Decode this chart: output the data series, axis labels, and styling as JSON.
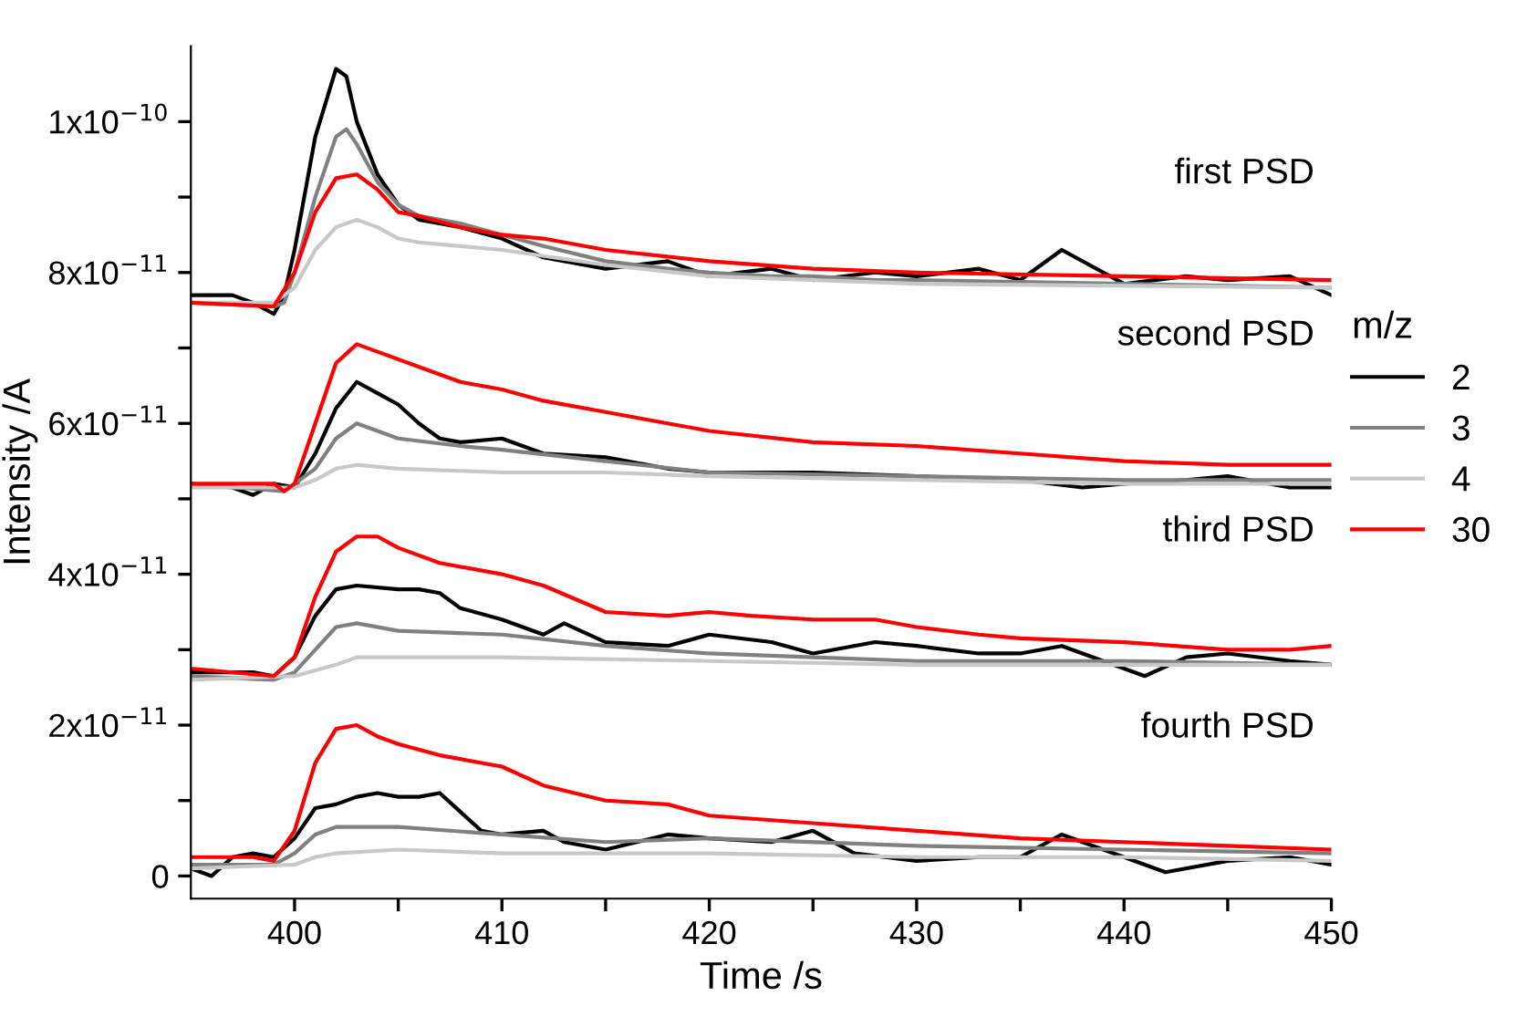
{
  "chart_data": {
    "type": "line",
    "xlabel": "Time /s",
    "ylabel": "Intensity /A",
    "legend_title": "m/z",
    "legend": "right",
    "grid": false,
    "line_style": "solid",
    "marker": "none",
    "xlim": [
      395,
      450
    ],
    "xticks": [
      400,
      {
        "value": 405,
        "label": null
      },
      410,
      {
        "value": 415,
        "label": null
      },
      420,
      {
        "value": 425,
        "label": null
      },
      430,
      {
        "value": 435,
        "label": null
      },
      440,
      {
        "value": 445,
        "label": null
      },
      450
    ],
    "ylim": [
      -3e-12,
      1.1e-10
    ],
    "yticks": [
      {
        "value": 0,
        "label": "0"
      },
      {
        "value": 1e-11,
        "label": null
      },
      {
        "value": 2e-11,
        "label": "2x10$^{−11}$"
      },
      {
        "value": 3e-11,
        "label": null
      },
      {
        "value": 4e-11,
        "label": "4x10$^{−11}$"
      },
      {
        "value": 5e-11,
        "label": null
      },
      {
        "value": 6e-11,
        "label": "6x10$^{−11}$"
      },
      {
        "value": 7e-11,
        "label": null
      },
      {
        "value": 8e-11,
        "label": "8x10$^{−11}$"
      },
      {
        "value": 9e-11,
        "label": null
      },
      {
        "value": 1e-10,
        "label": "1x10$^{−10}$"
      }
    ],
    "annotations": [
      "first PSD",
      "second PSD",
      "third PSD",
      "fourth PSD"
    ],
    "series": [
      {
        "name": "2",
        "color": "#000000",
        "x": [
          395,
          397,
          398,
          399,
          399.5,
          400,
          401,
          402,
          402.5,
          403,
          404,
          405,
          406,
          407,
          408,
          410,
          412,
          415,
          418,
          420,
          423,
          425,
          428,
          430,
          433,
          435,
          437,
          440,
          443,
          445,
          448,
          450
        ],
        "values": [
          7.7e-11,
          7.7e-11,
          7.6e-11,
          7.45e-11,
          7.7e-11,
          8.3e-11,
          9.8e-11,
          1.07e-10,
          1.06e-10,
          1e-10,
          9.3e-11,
          8.9e-11,
          8.7e-11,
          8.65e-11,
          8.6e-11,
          8.45e-11,
          8.2e-11,
          8.05e-11,
          8.15e-11,
          7.95e-11,
          8.05e-11,
          7.9e-11,
          8e-11,
          7.95e-11,
          8.05e-11,
          7.9e-11,
          8.3e-11,
          7.85e-11,
          7.95e-11,
          7.9e-11,
          7.95e-11,
          7.7e-11
        ]
      },
      {
        "name": "3",
        "color": "#808080",
        "x": [
          395,
          399,
          399.5,
          400,
          401,
          402,
          402.5,
          403,
          404,
          405,
          406,
          407,
          408,
          410,
          412,
          415,
          418,
          420,
          423,
          425,
          428,
          430,
          440,
          450
        ],
        "values": [
          7.6e-11,
          7.55e-11,
          7.6e-11,
          8e-11,
          9e-11,
          9.8e-11,
          9.9e-11,
          9.7e-11,
          9.2e-11,
          8.9e-11,
          8.75e-11,
          8.7e-11,
          8.65e-11,
          8.5e-11,
          8.35e-11,
          8.15e-11,
          8.05e-11,
          8e-11,
          7.95e-11,
          7.95e-11,
          7.9e-11,
          7.9e-11,
          7.85e-11,
          7.8e-11
        ]
      },
      {
        "name": "4",
        "color": "#c8c8c8",
        "x": [
          395,
          399,
          400,
          401,
          402,
          403,
          404,
          405,
          406,
          408,
          410,
          415,
          420,
          430,
          450
        ],
        "values": [
          7.6e-11,
          7.6e-11,
          7.8e-11,
          8.3e-11,
          8.6e-11,
          8.7e-11,
          8.6e-11,
          8.45e-11,
          8.4e-11,
          8.35e-11,
          8.3e-11,
          8.1e-11,
          7.95e-11,
          7.85e-11,
          7.8e-11
        ]
      },
      {
        "name": "30",
        "color": "#ff0000",
        "x": [
          395,
          399,
          400,
          401,
          402,
          403,
          404,
          405,
          406,
          408,
          410,
          412,
          415,
          420,
          425,
          430,
          440,
          450
        ],
        "values": [
          7.6e-11,
          7.55e-11,
          8e-11,
          8.8e-11,
          9.25e-11,
          9.3e-11,
          9.1e-11,
          8.8e-11,
          8.75e-11,
          8.6e-11,
          8.5e-11,
          8.45e-11,
          8.3e-11,
          8.15e-11,
          8.05e-11,
          8e-11,
          7.95e-11,
          7.9e-11
        ]
      },
      {
        "color": "#000000",
        "x": [
          395,
          397,
          398,
          399,
          400,
          401,
          402,
          403,
          404,
          405,
          406,
          407,
          408,
          410,
          412,
          415,
          418,
          420,
          425,
          430,
          435,
          438,
          440,
          443,
          445,
          448,
          450
        ],
        "values": [
          5.2e-11,
          5.15e-11,
          5.05e-11,
          5.2e-11,
          5.15e-11,
          5.6e-11,
          6.2e-11,
          6.55e-11,
          6.4e-11,
          6.25e-11,
          6e-11,
          5.8e-11,
          5.75e-11,
          5.8e-11,
          5.6e-11,
          5.55e-11,
          5.4e-11,
          5.35e-11,
          5.35e-11,
          5.3e-11,
          5.25e-11,
          5.15e-11,
          5.2e-11,
          5.25e-11,
          5.3e-11,
          5.15e-11,
          5.15e-11
        ]
      },
      {
        "color": "#808080",
        "x": [
          395,
          399.5,
          401,
          402,
          403,
          405,
          408,
          410,
          415,
          420,
          430,
          440,
          450
        ],
        "values": [
          5.2e-11,
          5.1e-11,
          5.4e-11,
          5.8e-11,
          6e-11,
          5.8e-11,
          5.7e-11,
          5.65e-11,
          5.5e-11,
          5.35e-11,
          5.3e-11,
          5.25e-11,
          5.25e-11
        ]
      },
      {
        "color": "#c8c8c8",
        "x": [
          395,
          400,
          401,
          402,
          403,
          405,
          410,
          415,
          420,
          430,
          440,
          450
        ],
        "values": [
          5.15e-11,
          5.15e-11,
          5.25e-11,
          5.4e-11,
          5.45e-11,
          5.4e-11,
          5.35e-11,
          5.35e-11,
          5.3e-11,
          5.25e-11,
          5.2e-11,
          5.2e-11
        ]
      },
      {
        "color": "#ff0000",
        "x": [
          395,
          399,
          399.5,
          400,
          401,
          402,
          403,
          404,
          406,
          408,
          410,
          412,
          415,
          418,
          420,
          425,
          430,
          435,
          440,
          445,
          450
        ],
        "values": [
          5.2e-11,
          5.2e-11,
          5.1e-11,
          5.2e-11,
          6e-11,
          6.8e-11,
          7.05e-11,
          6.95e-11,
          6.75e-11,
          6.55e-11,
          6.45e-11,
          6.3e-11,
          6.15e-11,
          6e-11,
          5.9e-11,
          5.75e-11,
          5.7e-11,
          5.6e-11,
          5.5e-11,
          5.45e-11,
          5.45e-11
        ]
      },
      {
        "color": "#000000",
        "x": [
          395,
          398,
          399,
          400,
          401,
          402,
          403,
          405,
          406,
          407,
          408,
          410,
          412,
          413,
          415,
          418,
          420,
          423,
          425,
          428,
          430,
          433,
          435,
          437,
          440,
          441,
          443,
          445,
          448,
          450
        ],
        "values": [
          2.7e-11,
          2.7e-11,
          2.65e-11,
          2.9e-11,
          3.45e-11,
          3.8e-11,
          3.85e-11,
          3.8e-11,
          3.8e-11,
          3.75e-11,
          3.55e-11,
          3.4e-11,
          3.2e-11,
          3.35e-11,
          3.1e-11,
          3.05e-11,
          3.2e-11,
          3.1e-11,
          2.95e-11,
          3.1e-11,
          3.05e-11,
          2.95e-11,
          2.95e-11,
          3.05e-11,
          2.75e-11,
          2.65e-11,
          2.9e-11,
          2.95e-11,
          2.85e-11,
          2.8e-11
        ]
      },
      {
        "color": "#808080",
        "x": [
          395,
          399,
          400,
          401,
          402,
          403,
          405,
          410,
          415,
          420,
          425,
          430,
          440,
          450
        ],
        "values": [
          2.65e-11,
          2.6e-11,
          2.7e-11,
          3e-11,
          3.3e-11,
          3.35e-11,
          3.25e-11,
          3.2e-11,
          3.05e-11,
          2.95e-11,
          2.9e-11,
          2.85e-11,
          2.85e-11,
          2.8e-11
        ]
      },
      {
        "color": "#c8c8c8",
        "x": [
          395,
          400,
          402,
          403,
          410,
          420,
          430,
          440,
          450
        ],
        "values": [
          2.6e-11,
          2.65e-11,
          2.8e-11,
          2.9e-11,
          2.9e-11,
          2.85e-11,
          2.8e-11,
          2.8e-11,
          2.8e-11
        ]
      },
      {
        "color": "#ff0000",
        "x": [
          395,
          399,
          400,
          401,
          402,
          403,
          404,
          405,
          407,
          410,
          412,
          415,
          418,
          420,
          422,
          425,
          428,
          430,
          433,
          435,
          440,
          445,
          448,
          450
        ],
        "values": [
          2.75e-11,
          2.65e-11,
          2.9e-11,
          3.7e-11,
          4.3e-11,
          4.5e-11,
          4.5e-11,
          4.35e-11,
          4.15e-11,
          4e-11,
          3.85e-11,
          3.5e-11,
          3.45e-11,
          3.5e-11,
          3.45e-11,
          3.4e-11,
          3.4e-11,
          3.3e-11,
          3.2e-11,
          3.15e-11,
          3.1e-11,
          3e-11,
          3e-11,
          3.05e-11
        ]
      },
      {
        "color": "#000000",
        "x": [
          395,
          396,
          397,
          398,
          399,
          400,
          401,
          402,
          403,
          404,
          405,
          406,
          407,
          408,
          409,
          410,
          412,
          413,
          415,
          418,
          420,
          423,
          425,
          427,
          430,
          433,
          435,
          437,
          440,
          442,
          445,
          448,
          450
        ],
        "values": [
          1e-12,
          0,
          2.5e-12,
          3e-12,
          2.5e-12,
          5e-12,
          9e-12,
          9.5e-12,
          1.05e-11,
          1.1e-11,
          1.05e-11,
          1.05e-11,
          1.1e-11,
          8.5e-12,
          6e-12,
          5.5e-12,
          6e-12,
          4.5e-12,
          3.5e-12,
          5.5e-12,
          5e-12,
          4.5e-12,
          6e-12,
          3e-12,
          2e-12,
          2.5e-12,
          2.5e-12,
          5.5e-12,
          2.5e-12,
          5e-13,
          2e-12,
          2.5e-12,
          1.5e-12
        ]
      },
      {
        "color": "#808080",
        "x": [
          395,
          399,
          400,
          401,
          402,
          405,
          410,
          415,
          420,
          430,
          440,
          450
        ],
        "values": [
          1.5e-12,
          1.5e-12,
          3e-12,
          5.5e-12,
          6.5e-12,
          6.5e-12,
          5.5e-12,
          4.5e-12,
          5e-12,
          4e-12,
          3.5e-12,
          3e-12
        ]
      },
      {
        "color": "#c8c8c8",
        "x": [
          395,
          400,
          401,
          402,
          405,
          410,
          420,
          430,
          440,
          450
        ],
        "values": [
          1e-12,
          1.5e-12,
          2.5e-12,
          3e-12,
          3.5e-12,
          3e-12,
          3e-12,
          2.5e-12,
          2.5e-12,
          2e-12
        ]
      },
      {
        "color": "#ff0000",
        "x": [
          395,
          398,
          399,
          400,
          401,
          402,
          403,
          404,
          405,
          407,
          410,
          412,
          415,
          418,
          420,
          425,
          430,
          435,
          440,
          445,
          450
        ],
        "values": [
          2.5e-12,
          2.5e-12,
          2e-12,
          6e-12,
          1.5e-11,
          1.95e-11,
          2e-11,
          1.85e-11,
          1.75e-11,
          1.6e-11,
          1.45e-11,
          1.2e-11,
          1e-11,
          9.5e-12,
          8e-12,
          7e-12,
          6e-12,
          5e-12,
          4.5e-12,
          4e-12,
          3.5e-12
        ]
      }
    ]
  }
}
